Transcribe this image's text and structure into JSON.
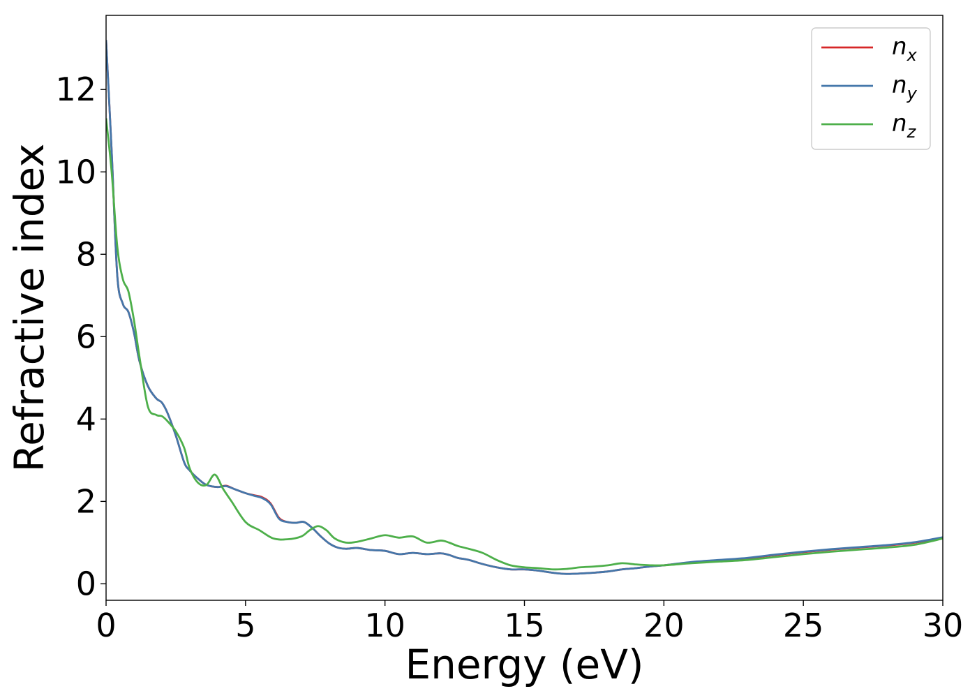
{
  "chart_data": {
    "type": "line",
    "xlabel": "Energy (eV)",
    "ylabel": "Refractive index",
    "xlim": [
      0,
      30
    ],
    "ylim": [
      -0.4,
      13.8
    ],
    "xticks": [
      0,
      5,
      10,
      15,
      20,
      25,
      30
    ],
    "yticks": [
      0,
      2,
      4,
      6,
      8,
      10,
      12
    ],
    "grid": false,
    "legend_position": "top-right",
    "series": [
      {
        "name": "n_x",
        "label_base": "n",
        "label_sub": "x",
        "color": "#d62728",
        "x": [
          0,
          0.2,
          0.4,
          0.6,
          0.8,
          1.0,
          1.2,
          1.5,
          1.8,
          2.0,
          2.2,
          2.5,
          2.8,
          3.0,
          3.3,
          3.6,
          4.0,
          4.3,
          4.6,
          5.0,
          5.3,
          5.6,
          5.9,
          6.2,
          6.5,
          6.8,
          7.1,
          7.4,
          7.7,
          8.0,
          8.3,
          8.6,
          9.0,
          9.5,
          10.0,
          10.5,
          11.0,
          11.5,
          12.0,
          12.3,
          12.6,
          13.0,
          13.5,
          14.0,
          14.5,
          15.0,
          15.5,
          16.0,
          16.5,
          17.0,
          17.5,
          18.0,
          18.5,
          19.0,
          19.5,
          20.0,
          21.0,
          22.0,
          23.0,
          24.0,
          25.0,
          26.0,
          27.0,
          28.0,
          29.0,
          30.0
        ],
        "y": [
          13.2,
          10.5,
          7.5,
          6.8,
          6.6,
          6.1,
          5.4,
          4.8,
          4.5,
          4.4,
          4.15,
          3.6,
          2.95,
          2.75,
          2.55,
          2.4,
          2.35,
          2.38,
          2.3,
          2.2,
          2.15,
          2.1,
          1.95,
          1.6,
          1.5,
          1.48,
          1.5,
          1.35,
          1.15,
          0.98,
          0.88,
          0.85,
          0.87,
          0.82,
          0.8,
          0.72,
          0.75,
          0.72,
          0.74,
          0.7,
          0.63,
          0.58,
          0.48,
          0.4,
          0.35,
          0.35,
          0.32,
          0.27,
          0.24,
          0.25,
          0.27,
          0.3,
          0.35,
          0.38,
          0.42,
          0.45,
          0.52,
          0.57,
          0.62,
          0.7,
          0.77,
          0.83,
          0.88,
          0.93,
          1.0,
          1.12
        ]
      },
      {
        "name": "n_y",
        "label_base": "n",
        "label_sub": "y",
        "color": "#4477aa",
        "x": [
          0,
          0.2,
          0.4,
          0.6,
          0.8,
          1.0,
          1.2,
          1.5,
          1.8,
          2.0,
          2.2,
          2.5,
          2.8,
          3.0,
          3.3,
          3.6,
          4.0,
          4.3,
          4.6,
          5.0,
          5.3,
          5.6,
          5.9,
          6.2,
          6.5,
          6.8,
          7.1,
          7.4,
          7.7,
          8.0,
          8.3,
          8.6,
          9.0,
          9.5,
          10.0,
          10.5,
          11.0,
          11.5,
          12.0,
          12.3,
          12.6,
          13.0,
          13.5,
          14.0,
          14.5,
          15.0,
          15.5,
          16.0,
          16.5,
          17.0,
          17.5,
          18.0,
          18.5,
          19.0,
          19.5,
          20.0,
          21.0,
          22.0,
          23.0,
          24.0,
          25.0,
          26.0,
          27.0,
          28.0,
          29.0,
          30.0
        ],
        "y": [
          13.2,
          10.5,
          7.5,
          6.8,
          6.6,
          6.1,
          5.4,
          4.8,
          4.5,
          4.4,
          4.15,
          3.6,
          2.95,
          2.75,
          2.55,
          2.4,
          2.35,
          2.37,
          2.3,
          2.2,
          2.14,
          2.08,
          1.93,
          1.58,
          1.5,
          1.48,
          1.5,
          1.35,
          1.15,
          0.98,
          0.88,
          0.85,
          0.87,
          0.82,
          0.8,
          0.72,
          0.75,
          0.72,
          0.74,
          0.7,
          0.63,
          0.58,
          0.48,
          0.4,
          0.35,
          0.35,
          0.32,
          0.27,
          0.24,
          0.25,
          0.27,
          0.3,
          0.35,
          0.38,
          0.42,
          0.45,
          0.53,
          0.58,
          0.63,
          0.71,
          0.78,
          0.84,
          0.89,
          0.94,
          1.01,
          1.13
        ]
      },
      {
        "name": "n_z",
        "label_base": "n",
        "label_sub": "z",
        "color": "#4daf4a",
        "x": [
          0,
          0.2,
          0.4,
          0.6,
          0.8,
          1.0,
          1.2,
          1.5,
          1.8,
          2.0,
          2.2,
          2.5,
          2.8,
          3.0,
          3.3,
          3.6,
          3.9,
          4.2,
          4.5,
          5.0,
          5.5,
          6.0,
          6.5,
          7.0,
          7.3,
          7.6,
          7.9,
          8.2,
          8.6,
          9.0,
          9.5,
          10.0,
          10.5,
          11.0,
          11.5,
          12.0,
          12.3,
          12.6,
          13.0,
          13.5,
          14.0,
          14.5,
          15.0,
          15.5,
          16.0,
          16.5,
          17.0,
          17.5,
          18.0,
          18.5,
          19.0,
          19.5,
          20.0,
          21.0,
          22.0,
          23.0,
          24.0,
          25.0,
          26.0,
          27.0,
          28.0,
          29.0,
          30.0
        ],
        "y": [
          11.3,
          10.0,
          8.2,
          7.4,
          7.1,
          6.4,
          5.5,
          4.3,
          4.1,
          4.07,
          3.95,
          3.7,
          3.3,
          2.8,
          2.45,
          2.4,
          2.65,
          2.3,
          2.0,
          1.5,
          1.3,
          1.1,
          1.08,
          1.15,
          1.3,
          1.4,
          1.3,
          1.1,
          1.0,
          1.02,
          1.1,
          1.18,
          1.12,
          1.15,
          1.0,
          1.05,
          1.0,
          0.92,
          0.85,
          0.75,
          0.58,
          0.45,
          0.4,
          0.38,
          0.35,
          0.36,
          0.4,
          0.42,
          0.45,
          0.5,
          0.47,
          0.45,
          0.45,
          0.5,
          0.54,
          0.58,
          0.65,
          0.72,
          0.78,
          0.83,
          0.88,
          0.95,
          1.1
        ]
      }
    ]
  }
}
